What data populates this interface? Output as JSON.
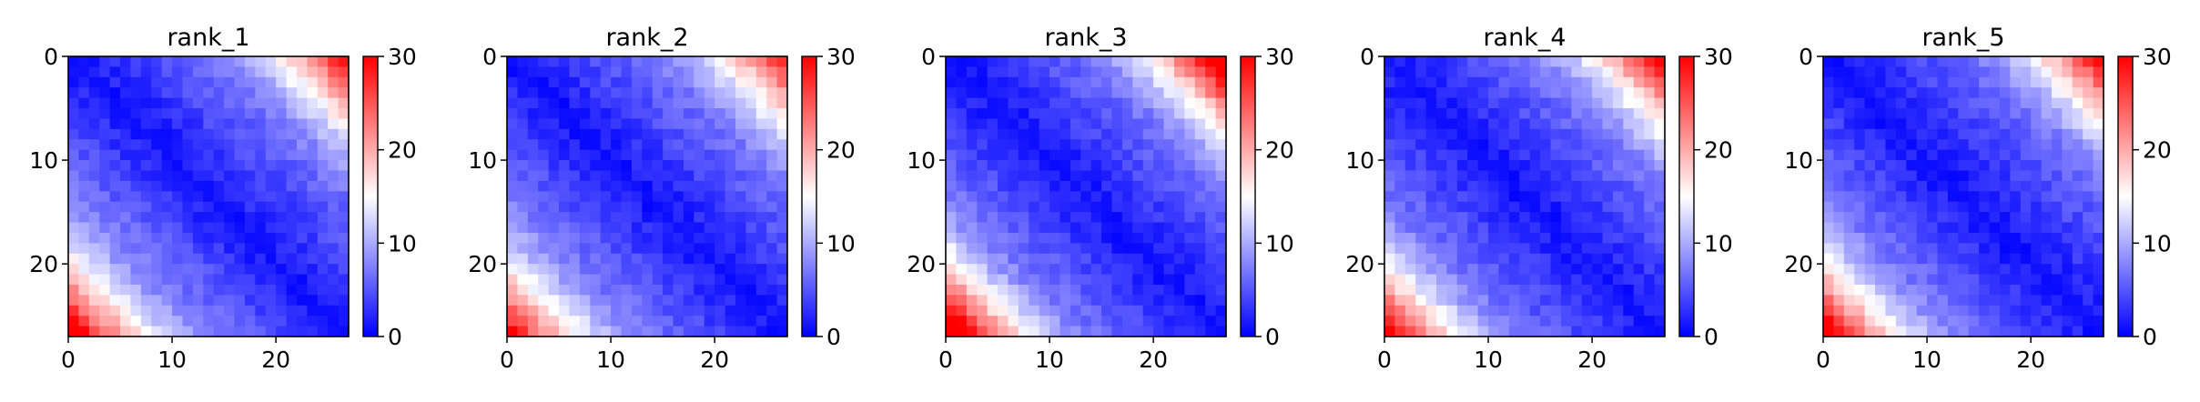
{
  "chart_data": [
    {
      "type": "heatmap",
      "title": "rank_1",
      "grid_size": 27,
      "xlabel": "",
      "ylabel": "",
      "x_ticks": [
        "0",
        "10",
        "20"
      ],
      "y_ticks": [
        "0",
        "10",
        "20"
      ],
      "x_tick_values": [
        0,
        10,
        20
      ],
      "y_tick_values": [
        0,
        10,
        20
      ],
      "colorbar": {
        "min": 0,
        "max": 30,
        "ticks": [
          "0",
          "10",
          "20",
          "30"
        ],
        "tick_values": [
          0,
          10,
          20,
          30
        ],
        "colors": [
          "#0000ff",
          "#ffffff",
          "#ff0000"
        ]
      },
      "grid": false,
      "pattern": {
        "max_corner": 24,
        "lower_left_extra": 2,
        "upper_right_extra": 0,
        "seed": 11
      }
    },
    {
      "type": "heatmap",
      "title": "rank_2",
      "grid_size": 27,
      "xlabel": "",
      "ylabel": "",
      "x_ticks": [
        "0",
        "10",
        "20"
      ],
      "y_ticks": [
        "0",
        "10",
        "20"
      ],
      "x_tick_values": [
        0,
        10,
        20
      ],
      "y_tick_values": [
        0,
        10,
        20
      ],
      "colorbar": {
        "min": 0,
        "max": 30,
        "ticks": [
          "0",
          "10",
          "20",
          "30"
        ],
        "tick_values": [
          0,
          10,
          20,
          30
        ],
        "colors": [
          "#0000ff",
          "#ffffff",
          "#ff0000"
        ]
      },
      "grid": false,
      "pattern": {
        "max_corner": 22,
        "lower_left_extra": 1,
        "upper_right_extra": 0,
        "seed": 23
      }
    },
    {
      "type": "heatmap",
      "title": "rank_3",
      "grid_size": 27,
      "xlabel": "",
      "ylabel": "",
      "x_ticks": [
        "0",
        "10",
        "20"
      ],
      "y_ticks": [
        "0",
        "10",
        "20"
      ],
      "x_tick_values": [
        0,
        10,
        20
      ],
      "y_tick_values": [
        0,
        10,
        20
      ],
      "colorbar": {
        "min": 0,
        "max": 30,
        "ticks": [
          "0",
          "10",
          "20",
          "30"
        ],
        "tick_values": [
          0,
          10,
          20,
          30
        ],
        "colors": [
          "#0000ff",
          "#ffffff",
          "#ff0000"
        ]
      },
      "grid": false,
      "pattern": {
        "max_corner": 29,
        "lower_left_extra": 1,
        "upper_right_extra": 0,
        "seed": 37
      }
    },
    {
      "type": "heatmap",
      "title": "rank_4",
      "grid_size": 27,
      "xlabel": "",
      "ylabel": "",
      "x_ticks": [
        "0",
        "10",
        "20"
      ],
      "y_ticks": [
        "0",
        "10",
        "20"
      ],
      "x_tick_values": [
        0,
        10,
        20
      ],
      "y_tick_values": [
        0,
        10,
        20
      ],
      "colorbar": {
        "min": 0,
        "max": 30,
        "ticks": [
          "0",
          "10",
          "20",
          "30"
        ],
        "tick_values": [
          0,
          10,
          20,
          30
        ],
        "colors": [
          "#0000ff",
          "#ffffff",
          "#ff0000"
        ]
      },
      "grid": false,
      "pattern": {
        "max_corner": 25,
        "lower_left_extra": 0,
        "upper_right_extra": 0,
        "seed": 41
      }
    },
    {
      "type": "heatmap",
      "title": "rank_5",
      "grid_size": 27,
      "xlabel": "",
      "ylabel": "",
      "x_ticks": [
        "0",
        "10",
        "20"
      ],
      "y_ticks": [
        "0",
        "10",
        "20"
      ],
      "x_tick_values": [
        0,
        10,
        20
      ],
      "y_tick_values": [
        0,
        10,
        20
      ],
      "colorbar": {
        "min": 0,
        "max": 30,
        "ticks": [
          "0",
          "10",
          "20",
          "30"
        ],
        "tick_values": [
          0,
          10,
          20,
          30
        ],
        "colors": [
          "#0000ff",
          "#ffffff",
          "#ff0000"
        ]
      },
      "grid": false,
      "pattern": {
        "max_corner": 25,
        "lower_left_extra": 1,
        "upper_right_extra": -1,
        "seed": 53
      }
    }
  ]
}
